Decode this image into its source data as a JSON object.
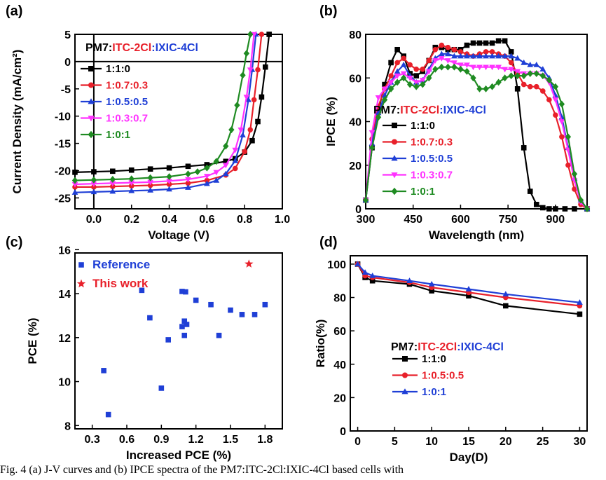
{
  "caption": "Fig. 4 (a) J-V curves and (b) IPCE spectra of the PM7:ITC-2Cl:IXIC-4Cl based cells with",
  "chart_data": [
    {
      "type": "line",
      "panel_label": "(a)",
      "xlabel": "Voltage (V)",
      "ylabel": "Current Density (mA/cm²)",
      "xlim": [
        -0.1,
        1.0
      ],
      "ylim": [
        -27,
        5
      ],
      "xticks": [
        0.0,
        0.2,
        0.4,
        0.6,
        0.8,
        1.0
      ],
      "yticks": [
        5,
        0,
        -5,
        -10,
        -15,
        -20,
        -25
      ],
      "grid": false,
      "legend_title": [
        "PM7:",
        "ITC-2Cl",
        ":IXIC-4Cl"
      ],
      "legend_placement": "top-left",
      "series": [
        {
          "name": "1:1:0",
          "color": "#000000",
          "marker": "square",
          "x": [
            -0.1,
            0.0,
            0.1,
            0.2,
            0.3,
            0.4,
            0.5,
            0.6,
            0.7,
            0.75,
            0.8,
            0.84,
            0.87,
            0.89,
            0.91,
            0.93
          ],
          "y": [
            -20.3,
            -20.2,
            -20.1,
            -19.9,
            -19.7,
            -19.5,
            -19.2,
            -18.9,
            -18.3,
            -17.8,
            -16.6,
            -14.5,
            -11.0,
            -6.5,
            -1.0,
            5.0
          ]
        },
        {
          "name": "1:0.7:0.3",
          "color": "#e8202a",
          "marker": "circle",
          "x": [
            -0.1,
            0.0,
            0.1,
            0.2,
            0.3,
            0.4,
            0.5,
            0.6,
            0.7,
            0.75,
            0.8,
            0.83,
            0.85,
            0.87,
            0.89
          ],
          "y": [
            -23.0,
            -23.0,
            -22.9,
            -22.8,
            -22.7,
            -22.5,
            -22.3,
            -21.8,
            -20.8,
            -19.6,
            -16.5,
            -12.5,
            -7.0,
            -1.5,
            5.0
          ]
        },
        {
          "name": "1:0.5:0.5",
          "color": "#1f3fd6",
          "marker": "triangle",
          "x": [
            -0.1,
            0.0,
            0.1,
            0.2,
            0.3,
            0.4,
            0.5,
            0.6,
            0.65,
            0.7,
            0.75,
            0.79,
            0.82,
            0.84,
            0.86
          ],
          "y": [
            -24.0,
            -23.9,
            -23.8,
            -23.7,
            -23.6,
            -23.4,
            -23.1,
            -22.4,
            -21.8,
            -20.6,
            -18.2,
            -13.5,
            -7.0,
            -1.5,
            5.0
          ]
        },
        {
          "name": "1:0.3:0.7",
          "color": "#ff32ff",
          "marker": "triangle-down",
          "x": [
            -0.1,
            0.0,
            0.1,
            0.2,
            0.3,
            0.4,
            0.5,
            0.6,
            0.65,
            0.7,
            0.75,
            0.78,
            0.81,
            0.83,
            0.85
          ],
          "y": [
            -22.5,
            -22.4,
            -22.3,
            -22.2,
            -22.1,
            -21.9,
            -21.6,
            -21.0,
            -20.3,
            -19.0,
            -16.2,
            -12.5,
            -6.5,
            -1.5,
            5.0
          ]
        },
        {
          "name": "1:0:1",
          "color": "#1f8b22",
          "marker": "diamond",
          "x": [
            -0.1,
            0.0,
            0.1,
            0.2,
            0.3,
            0.4,
            0.5,
            0.55,
            0.6,
            0.65,
            0.7,
            0.73,
            0.76,
            0.79,
            0.81,
            0.83
          ],
          "y": [
            -21.8,
            -21.7,
            -21.6,
            -21.5,
            -21.3,
            -21.1,
            -20.6,
            -20.2,
            -19.5,
            -18.3,
            -15.5,
            -12.5,
            -8.0,
            -2.5,
            1.5,
            5.0
          ]
        }
      ]
    },
    {
      "type": "line",
      "panel_label": "(b)",
      "xlabel": "Wavelength (nm)",
      "ylabel": "IPCE (%)",
      "xlim": [
        300,
        1000
      ],
      "ylim": [
        0,
        80
      ],
      "xticks": [
        300,
        450,
        600,
        750,
        900
      ],
      "yticks": [
        0,
        20,
        40,
        60,
        80
      ],
      "grid": false,
      "legend_title": [
        "PM7:",
        "ITC-2Cl",
        ":IXIC-4Cl"
      ],
      "legend_placement": "bottom-center",
      "series": [
        {
          "name": "1:1:0",
          "color": "#000000",
          "marker": "square",
          "x": [
            300,
            320,
            340,
            360,
            380,
            400,
            420,
            440,
            460,
            480,
            500,
            520,
            540,
            560,
            580,
            600,
            620,
            640,
            660,
            680,
            700,
            720,
            740,
            760,
            780,
            800,
            820,
            840,
            860,
            880,
            900,
            930,
            960,
            1000
          ],
          "y": [
            4,
            28,
            45,
            57,
            67,
            73,
            70,
            62,
            61,
            63,
            68,
            74,
            74,
            73,
            73,
            73,
            75,
            76,
            76,
            76,
            76,
            77,
            77,
            72,
            55,
            28,
            8,
            2,
            0.5,
            0,
            0,
            0,
            0,
            0
          ]
        },
        {
          "name": "1:0.7:0.3",
          "color": "#e8202a",
          "marker": "circle",
          "x": [
            300,
            320,
            340,
            360,
            380,
            400,
            420,
            440,
            460,
            480,
            500,
            520,
            540,
            560,
            580,
            600,
            620,
            640,
            660,
            680,
            700,
            720,
            740,
            760,
            780,
            800,
            820,
            840,
            860,
            880,
            900,
            920,
            940,
            960,
            980,
            1000
          ],
          "y": [
            4,
            32,
            47,
            55,
            61,
            67,
            69,
            66,
            64,
            64,
            68,
            73,
            75,
            74,
            73,
            72,
            71,
            70,
            71,
            72,
            72,
            71,
            70,
            67,
            62,
            57,
            56,
            56,
            54,
            50,
            43,
            33,
            20,
            9,
            2,
            0
          ]
        },
        {
          "name": "1:0.5:0.5",
          "color": "#1f3fd6",
          "marker": "triangle",
          "x": [
            300,
            320,
            340,
            360,
            380,
            400,
            420,
            440,
            460,
            480,
            500,
            520,
            540,
            560,
            580,
            600,
            620,
            640,
            660,
            680,
            700,
            720,
            740,
            760,
            780,
            800,
            820,
            840,
            860,
            880,
            900,
            920,
            940,
            960,
            980,
            1000
          ],
          "y": [
            4,
            30,
            44,
            52,
            58,
            63,
            66,
            61,
            58,
            59,
            64,
            69,
            71,
            71,
            70,
            70,
            70,
            70,
            70,
            70,
            70,
            70,
            70,
            70,
            69,
            67,
            66,
            66,
            64,
            60,
            52,
            42,
            28,
            14,
            4,
            0
          ]
        },
        {
          "name": "1:0.3:0.7",
          "color": "#ff32ff",
          "marker": "triangle-down",
          "x": [
            300,
            320,
            340,
            360,
            380,
            400,
            420,
            440,
            460,
            480,
            500,
            520,
            540,
            560,
            580,
            600,
            620,
            640,
            660,
            680,
            700,
            720,
            740,
            760,
            780,
            800,
            820,
            840,
            860,
            880,
            900,
            920,
            940,
            960,
            980,
            1000
          ],
          "y": [
            4,
            35,
            51,
            55,
            58,
            61,
            62,
            60,
            58,
            59,
            63,
            68,
            69,
            68,
            67,
            66,
            66,
            65,
            65,
            65,
            65,
            65,
            64,
            64,
            63,
            62,
            62,
            62,
            61,
            58,
            50,
            40,
            27,
            13,
            3,
            0
          ]
        },
        {
          "name": "1:0:1",
          "color": "#1f8b22",
          "marker": "diamond",
          "x": [
            300,
            320,
            340,
            360,
            380,
            400,
            420,
            440,
            460,
            480,
            500,
            520,
            540,
            560,
            580,
            600,
            620,
            640,
            660,
            680,
            700,
            720,
            740,
            760,
            780,
            800,
            820,
            840,
            860,
            880,
            900,
            920,
            940,
            960,
            980,
            1000
          ],
          "y": [
            4,
            28,
            42,
            50,
            55,
            58,
            60,
            57,
            56,
            57,
            60,
            64,
            65,
            65,
            65,
            64,
            63,
            60,
            55,
            55,
            56,
            58,
            60,
            61,
            61,
            61,
            62,
            62,
            61,
            59,
            56,
            48,
            33,
            16,
            4,
            0
          ]
        }
      ]
    },
    {
      "type": "scatter",
      "panel_label": "(c)",
      "xlabel": "Increased PCE (%)",
      "ylabel": "PCE (%)",
      "xlim": [
        0.15,
        1.95
      ],
      "ylim": [
        7.85,
        15.85
      ],
      "xticks": [
        0.3,
        0.6,
        0.9,
        1.2,
        1.5,
        1.8
      ],
      "yticks": [
        8,
        10,
        12,
        14,
        16
      ],
      "grid": false,
      "legend_placement": "top-left",
      "series": [
        {
          "name": "Reference",
          "color": "#1f3fd6",
          "marker": "square",
          "x": [
            0.4,
            0.44,
            0.73,
            0.8,
            0.9,
            0.96,
            1.08,
            1.08,
            1.1,
            1.1,
            1.11,
            1.12,
            1.2,
            1.33,
            1.4,
            1.5,
            1.6,
            1.71,
            1.8
          ],
          "y": [
            10.5,
            8.5,
            14.15,
            12.9,
            9.7,
            11.9,
            14.1,
            12.5,
            12.1,
            12.75,
            14.08,
            12.6,
            13.7,
            13.5,
            12.1,
            13.25,
            13.05,
            13.05,
            13.5
          ]
        },
        {
          "name": "This work",
          "color": "#e8202a",
          "marker": "star",
          "x": [
            1.66
          ],
          "y": [
            15.35
          ]
        }
      ]
    },
    {
      "type": "line",
      "panel_label": "(d)",
      "xlabel": "Day(D)",
      "ylabel": "Ratio(%)",
      "xlim": [
        -1,
        31
      ],
      "ylim": [
        0,
        105
      ],
      "xticks": [
        0,
        5,
        10,
        15,
        20,
        25,
        30
      ],
      "yticks": [
        0,
        20,
        40,
        60,
        80,
        100
      ],
      "grid": false,
      "legend_title": [
        "PM7:",
        "ITC-2Cl",
        ":IXIC-4Cl"
      ],
      "legend_placement": "center",
      "series": [
        {
          "name": "1:1:0",
          "color": "#000000",
          "marker": "square",
          "x": [
            0,
            1,
            2,
            7,
            10,
            15,
            20,
            30
          ],
          "y": [
            100,
            92,
            90,
            88,
            84,
            81,
            75,
            70
          ]
        },
        {
          "name": "1:0.5:0.5",
          "color": "#e8202a",
          "marker": "circle",
          "x": [
            0,
            1,
            2,
            7,
            10,
            15,
            20,
            30
          ],
          "y": [
            100,
            93,
            92,
            89,
            86,
            83,
            80,
            75
          ]
        },
        {
          "name": "1:0:1",
          "color": "#1f3fd6",
          "marker": "triangle",
          "x": [
            0,
            1,
            2,
            7,
            10,
            15,
            20,
            30
          ],
          "y": [
            100,
            95,
            93,
            90,
            88,
            85,
            82,
            77
          ]
        }
      ]
    }
  ]
}
